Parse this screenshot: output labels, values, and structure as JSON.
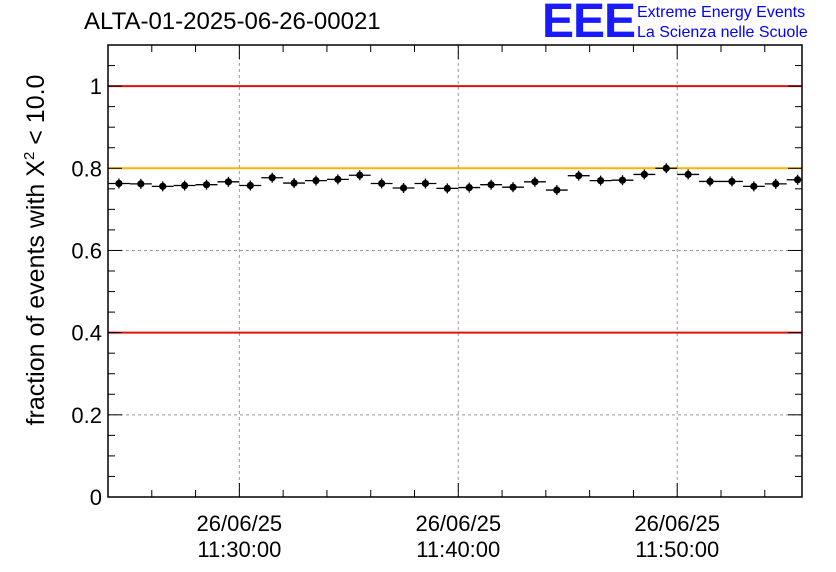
{
  "header": {
    "title": "ALTA-01-2025-06-26-00021",
    "logo_text": "EEE",
    "logo_line1": "Extreme Energy Events",
    "logo_line2": "La Scienza nelle Scuole"
  },
  "colors": {
    "threshold_red": "#e01010",
    "threshold_gold": "#ffb300",
    "logo_blue": "#1a1aff"
  },
  "chart_data": {
    "type": "scatter",
    "title": "ALTA-01-2025-06-26-00021",
    "ylabel_prefix": "fraction of events with ",
    "ylabel_symbol": "X",
    "ylabel_superscript": "2",
    "ylabel_suffix": " < 10.0",
    "xlabel": "",
    "ylim": [
      0,
      1.1
    ],
    "xlim_minutes": [
      20.0,
      51.7
    ],
    "y_ticks": [
      {
        "value": 0,
        "label": "0"
      },
      {
        "value": 0.2,
        "label": "0.2"
      },
      {
        "value": 0.4,
        "label": "0.4"
      },
      {
        "value": 0.6,
        "label": "0.6"
      },
      {
        "value": 0.8,
        "label": "0.8"
      },
      {
        "value": 1.0,
        "label": "1"
      }
    ],
    "x_ticks": [
      {
        "minute": 26.0,
        "date": "26/06/25",
        "time": "11:30:00"
      },
      {
        "minute": 36.0,
        "date": "26/06/25",
        "time": "11:40:00"
      },
      {
        "minute": 46.0,
        "date": "26/06/25",
        "time": "11:50:00"
      }
    ],
    "thresholds": [
      {
        "value": 1.0,
        "color": "red"
      },
      {
        "value": 0.8,
        "color": "gold"
      },
      {
        "value": 0.4,
        "color": "red"
      }
    ],
    "bin_width_minutes": 1.0,
    "x_minutes": [
      20.5,
      21.5,
      22.5,
      23.5,
      24.5,
      25.5,
      26.5,
      27.5,
      28.5,
      29.5,
      30.5,
      31.5,
      32.5,
      33.5,
      34.5,
      35.5,
      36.5,
      37.5,
      38.5,
      39.5,
      40.5,
      41.5,
      42.5,
      43.5,
      44.5,
      45.5,
      46.5,
      47.5,
      48.5,
      49.5,
      50.5,
      51.5
    ],
    "values": [
      0.763,
      0.762,
      0.756,
      0.758,
      0.76,
      0.767,
      0.758,
      0.777,
      0.764,
      0.77,
      0.773,
      0.783,
      0.763,
      0.752,
      0.763,
      0.751,
      0.753,
      0.76,
      0.754,
      0.767,
      0.747,
      0.782,
      0.77,
      0.771,
      0.785,
      0.8,
      0.785,
      0.768,
      0.768,
      0.756,
      0.762,
      0.772
    ]
  }
}
